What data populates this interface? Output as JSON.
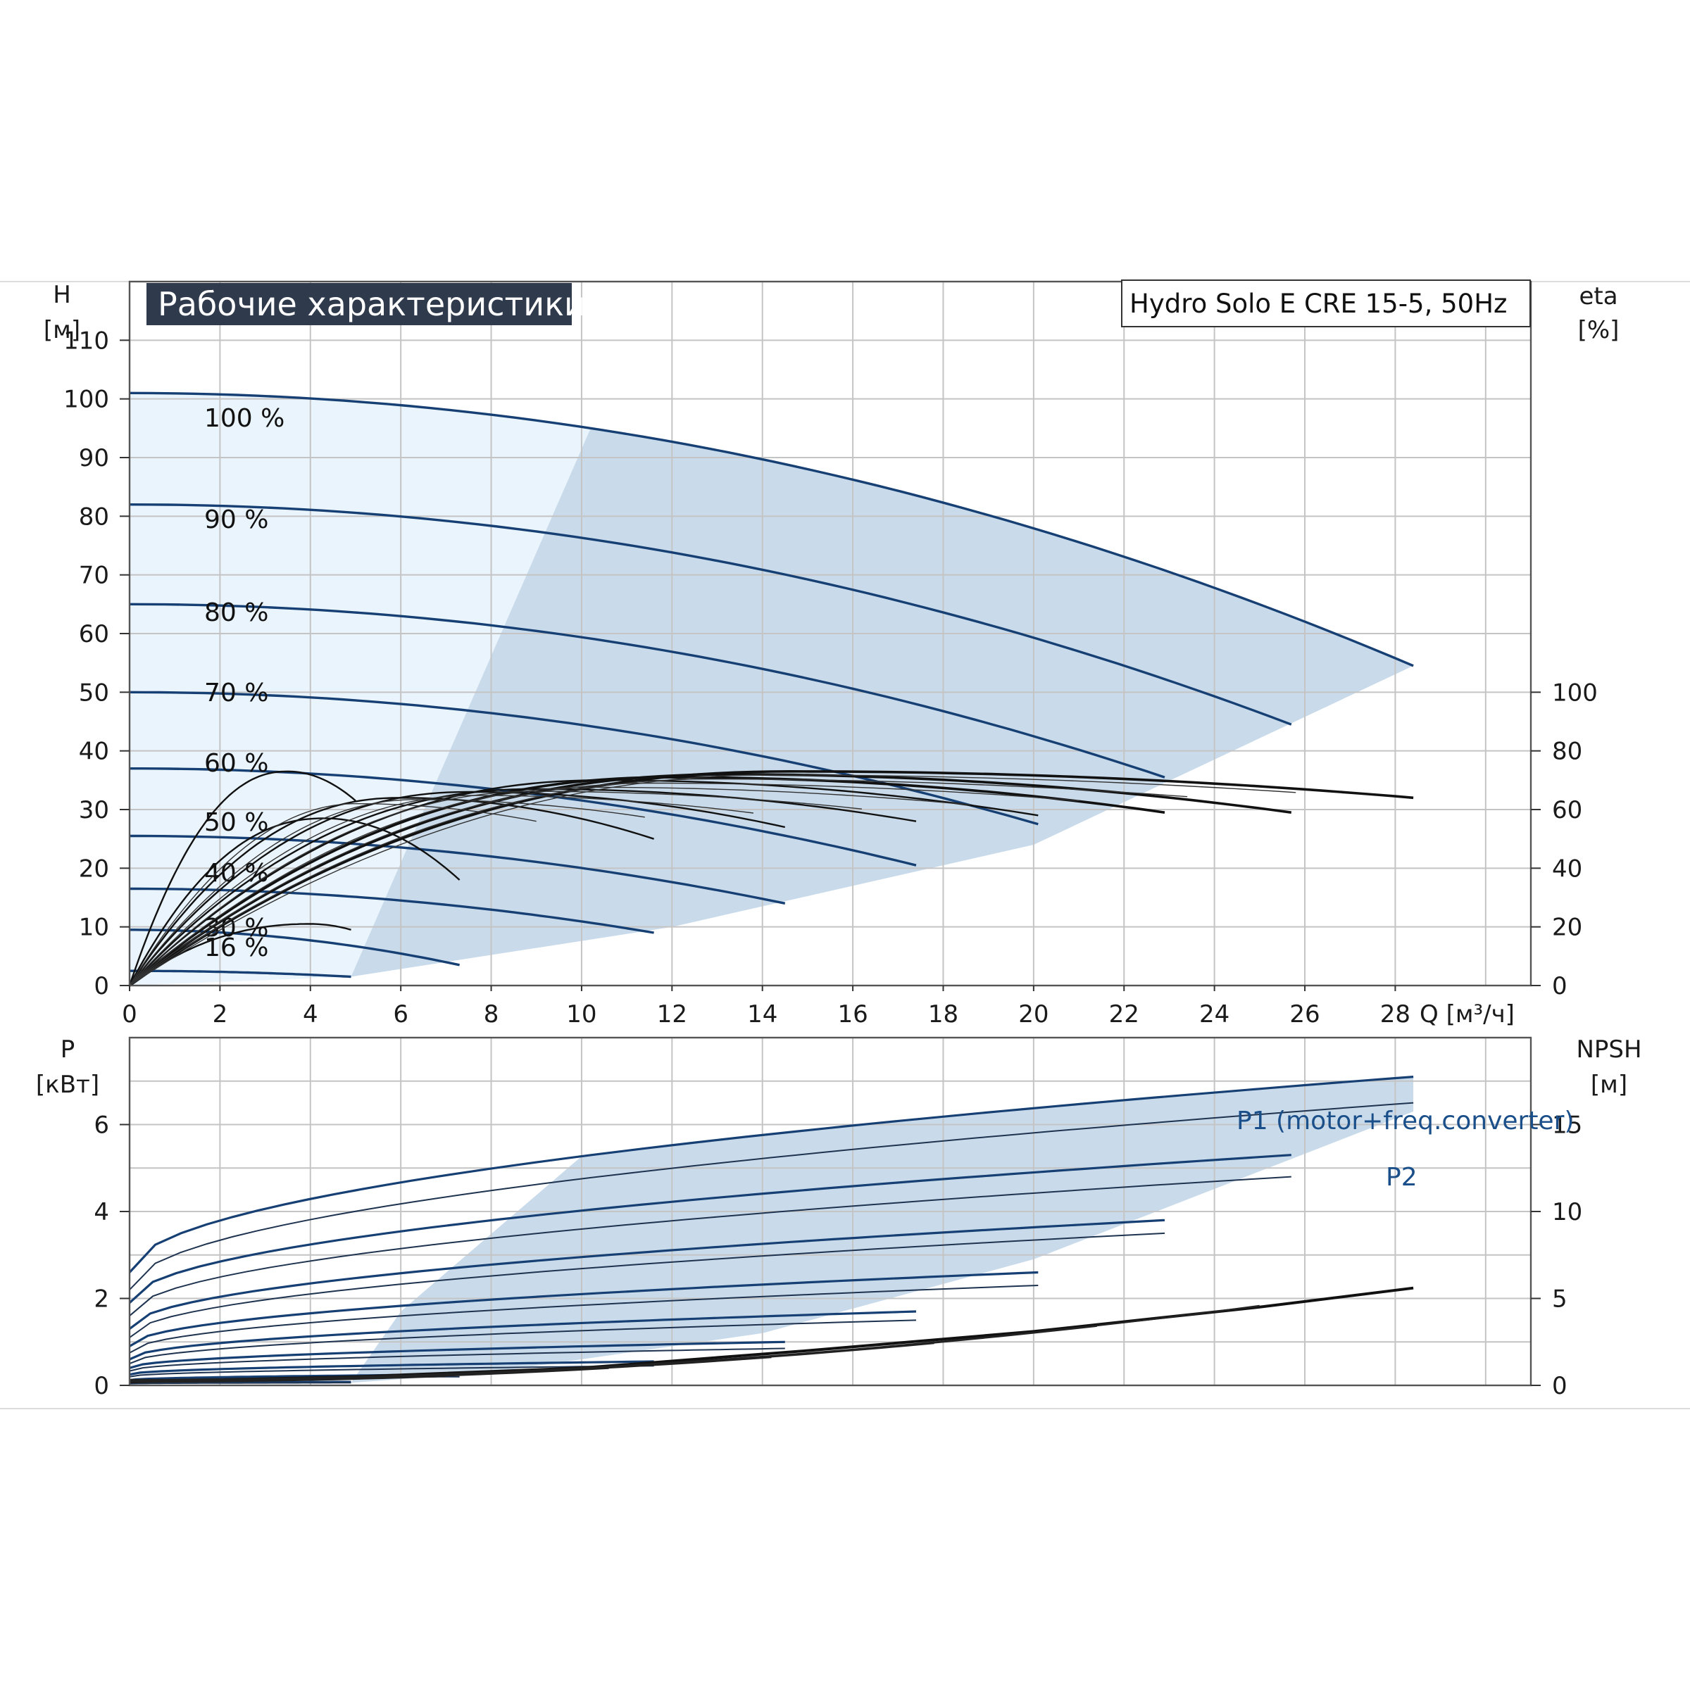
{
  "chart_data": [
    {
      "type": "line",
      "title": "Рабочие характеристики",
      "model": "Hydro Solo E CRE 15-5, 50Hz",
      "xlabel": "Q [м³/ч]",
      "ylabel_left": [
        "H",
        "[м]"
      ],
      "ylabel_right": [
        "eta",
        "[%]"
      ],
      "xlim": [
        0,
        31
      ],
      "ylim": [
        0,
        120
      ],
      "x_ticks": [
        0,
        2,
        4,
        6,
        8,
        10,
        12,
        14,
        16,
        18,
        20,
        22,
        24,
        26,
        28
      ],
      "y_ticks": [
        0,
        10,
        20,
        30,
        40,
        50,
        60,
        70,
        80,
        90,
        100,
        110
      ],
      "eta_ticks": [
        0,
        20,
        40,
        60,
        80,
        100
      ],
      "eta_scale_max_y": 50,
      "grid": true,
      "colors": {
        "head_curve": "#163f73",
        "eta_curve": "#111111",
        "range_fill": "#c9dbeb",
        "range_light": "#eaf4fc",
        "title_bg": "#2f3b4c"
      },
      "head_curves": [
        {
          "label": "100 %",
          "h0": 101,
          "h_end": 54.5,
          "q_max": 28.4
        },
        {
          "label": "90 %",
          "h0": 82,
          "h_end": 44.5,
          "q_max": 25.7
        },
        {
          "label": "80 %",
          "h0": 65,
          "h_end": 35.5,
          "q_max": 22.9
        },
        {
          "label": "70 %",
          "h0": 50,
          "h_end": 27.5,
          "q_max": 20.1
        },
        {
          "label": "60 %",
          "h0": 37,
          "h_end": 20.5,
          "q_max": 17.4
        },
        {
          "label": "50 %",
          "h0": 25.5,
          "h_end": 14,
          "q_max": 14.5
        },
        {
          "label": "40 %",
          "h0": 16.5,
          "h_end": 9,
          "q_max": 11.6
        },
        {
          "label": "30 %",
          "h0": 9.5,
          "h_end": 3.5,
          "q_max": 7.3
        },
        {
          "label": "16 %",
          "h0": 2.5,
          "h_end": 1.5,
          "q_max": 4.9
        }
      ],
      "eta_curves": [
        {
          "q_peak": 14.7,
          "eta_peak": 73,
          "q_max": 28.4,
          "eta_end": 64
        },
        {
          "q_peak": 13.3,
          "eta_peak": 72,
          "q_max": 25.7,
          "eta_end": 59
        },
        {
          "q_peak": 12.0,
          "eta_peak": 71,
          "q_max": 22.9,
          "eta_end": 59
        },
        {
          "q_peak": 10.5,
          "eta_peak": 70,
          "q_max": 20.1,
          "eta_end": 58
        },
        {
          "q_peak": 9.0,
          "eta_peak": 67,
          "q_max": 17.4,
          "eta_end": 56
        },
        {
          "q_peak": 7.5,
          "eta_peak": 66,
          "q_max": 14.5,
          "eta_end": 54
        },
        {
          "q_peak": 6.0,
          "eta_peak": 64,
          "q_max": 11.6,
          "eta_end": 50
        },
        {
          "q_peak": 4.3,
          "eta_peak": 57,
          "q_max": 7.3,
          "eta_end": 36
        },
        {
          "q_peak": 3.5,
          "eta_peak": 73,
          "q_max": 5.0,
          "eta_end": 63
        },
        {
          "q_peak": 4.0,
          "eta_peak": 21,
          "q_max": 4.9,
          "eta_end": 19
        }
      ],
      "operating_range_upper_q": [
        0,
        10.2,
        28.4
      ],
      "operating_range_upper_h": [
        101,
        95,
        54.5
      ],
      "operating_range_lower_q": [
        4.9,
        12,
        20,
        28.4
      ],
      "operating_range_lower_h": [
        1.5,
        10,
        24,
        54.5
      ]
    },
    {
      "type": "line",
      "xlabel": "",
      "ylabel_left": [
        "P",
        "[кВт]"
      ],
      "ylabel_right": [
        "NPSH",
        "[м]"
      ],
      "xlim": [
        0,
        31
      ],
      "ylim": [
        0,
        8
      ],
      "y_ticks": [
        0,
        2,
        4,
        6
      ],
      "npsh_ticks": [
        0,
        5,
        10,
        15
      ],
      "npsh_ylim": [
        0,
        20
      ],
      "grid": true,
      "series_labels": {
        "p1": "P1 (motor+freq.converter)",
        "p2": "P2"
      },
      "power_curves": [
        {
          "speed": "100 %",
          "q_max": 28.4,
          "p1": [
            2.6,
            7.1
          ],
          "p2": [
            2.2,
            6.5
          ]
        },
        {
          "speed": "90 %",
          "q_max": 25.7,
          "p1": [
            1.9,
            5.3
          ],
          "p2": [
            1.6,
            4.8
          ]
        },
        {
          "speed": "80 %",
          "q_max": 22.9,
          "p1": [
            1.3,
            3.8
          ],
          "p2": [
            1.1,
            3.5
          ]
        },
        {
          "speed": "70 %",
          "q_max": 20.1,
          "p1": [
            0.9,
            2.6
          ],
          "p2": [
            0.75,
            2.3
          ]
        },
        {
          "speed": "60 %",
          "q_max": 17.4,
          "p1": [
            0.6,
            1.7
          ],
          "p2": [
            0.5,
            1.5
          ]
        },
        {
          "speed": "50 %",
          "q_max": 14.5,
          "p1": [
            0.4,
            1.0
          ],
          "p2": [
            0.33,
            0.85
          ]
        },
        {
          "speed": "40 %",
          "q_max": 11.6,
          "p1": [
            0.25,
            0.55
          ],
          "p2": [
            0.2,
            0.45
          ]
        },
        {
          "speed": "30 %",
          "q_max": 7.3,
          "p1": [
            0.12,
            0.25
          ],
          "p2": [
            0.1,
            0.2
          ]
        },
        {
          "speed": "16 %",
          "q_max": 4.9,
          "p1": [
            0.05,
            0.08
          ],
          "p2": [
            0.04,
            0.06
          ]
        }
      ],
      "npsh": {
        "q": [
          0,
          5,
          10,
          15,
          20,
          25,
          28.4
        ],
        "values": [
          0.2,
          0.5,
          1.0,
          2.0,
          3.1,
          4.5,
          5.6
        ]
      }
    }
  ]
}
